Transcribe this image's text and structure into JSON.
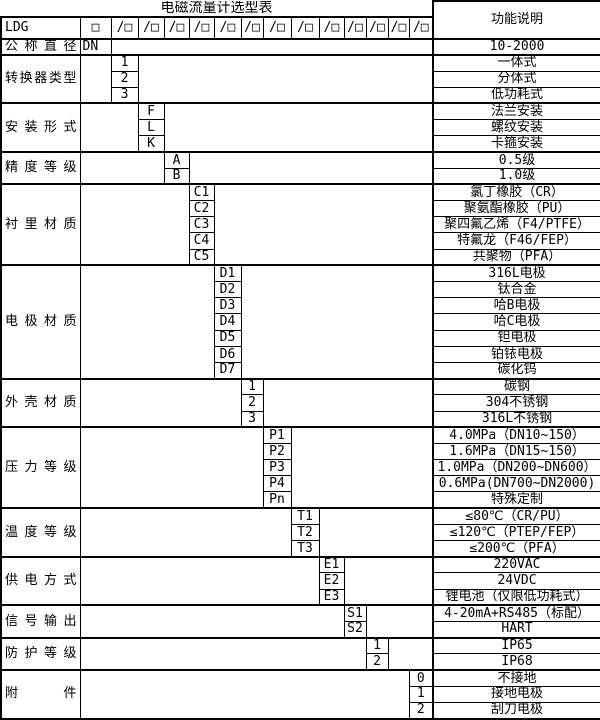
{
  "title": "电磁流量计选型表",
  "header": {
    "model": "LDG",
    "model_box": "□",
    "code_box": "/□",
    "desc": "功能说明"
  },
  "diameter": {
    "label": "公称直径",
    "code": "DN",
    "desc": "10-2000"
  },
  "sections": [
    {
      "label": "转换器类型",
      "col": 0,
      "items": [
        {
          "code": "1",
          "desc": "一体式"
        },
        {
          "code": "2",
          "desc": "分体式"
        },
        {
          "code": "3",
          "desc": "低功耗式"
        }
      ]
    },
    {
      "label": "安装形式",
      "col": 1,
      "items": [
        {
          "code": "F",
          "desc": "法兰安装"
        },
        {
          "code": "L",
          "desc": "螺纹安装"
        },
        {
          "code": "K",
          "desc": "卡箍安装"
        }
      ]
    },
    {
      "label": "精度等级",
      "col": 2,
      "items": [
        {
          "code": "A",
          "desc": "0.5级"
        },
        {
          "code": "B",
          "desc": "1.0级"
        }
      ]
    },
    {
      "label": "衬里材质",
      "col": 3,
      "items": [
        {
          "code": "C1",
          "desc": "氯丁橡胶（CR）"
        },
        {
          "code": "C2",
          "desc": "聚氨酯橡胶（PU）"
        },
        {
          "code": "C3",
          "desc": "聚四氟乙烯（F4/PTFE）"
        },
        {
          "code": "C4",
          "desc": "特氟龙（F46/FEP）"
        },
        {
          "code": "C5",
          "desc": "共聚物（PFA）"
        }
      ]
    },
    {
      "label": "电极材质",
      "col": 4,
      "items": [
        {
          "code": "D1",
          "desc": "316L电极"
        },
        {
          "code": "D2",
          "desc": "钛合金"
        },
        {
          "code": "D3",
          "desc": "哈B电极"
        },
        {
          "code": "D4",
          "desc": "哈C电极"
        },
        {
          "code": "D5",
          "desc": "钽电极"
        },
        {
          "code": "D6",
          "desc": "铂铱电极"
        },
        {
          "code": "D7",
          "desc": "碳化钨"
        }
      ]
    },
    {
      "label": "外壳材质",
      "col": 5,
      "items": [
        {
          "code": "1",
          "desc": "碳钢"
        },
        {
          "code": "2",
          "desc": "304不锈钢"
        },
        {
          "code": "3",
          "desc": "316L不锈钢"
        }
      ]
    },
    {
      "label": "压力等级",
      "col": 6,
      "items": [
        {
          "code": "P1",
          "desc": "4.0MPa（DN10~150）"
        },
        {
          "code": "P2",
          "desc": "1.6MPa（DN15~150）"
        },
        {
          "code": "P3",
          "desc": "1.0MPa（DN200~DN600）"
        },
        {
          "code": "P4",
          "desc": "0.6MPa(DN700~DN2000)"
        },
        {
          "code": "Pn",
          "desc": "特殊定制"
        }
      ]
    },
    {
      "label": "温度等级",
      "col": 7,
      "items": [
        {
          "code": "T1",
          "desc": "≤80℃（CR/PU）"
        },
        {
          "code": "T2",
          "desc": "≤120℃（PTEP/FEP）"
        },
        {
          "code": "T3",
          "desc": "≤200℃（PFA）"
        }
      ]
    },
    {
      "label": "供电方式",
      "col": 8,
      "items": [
        {
          "code": "E1",
          "desc": "220VAC"
        },
        {
          "code": "E2",
          "desc": "24VDC"
        },
        {
          "code": "E3",
          "desc": "锂电池（仅限低功耗式）"
        }
      ]
    },
    {
      "label": "信号输出",
      "col": 9,
      "items": [
        {
          "code": "S1",
          "desc": "4-20mA+RS485（标配）"
        },
        {
          "code": "S2",
          "desc": "HART"
        }
      ]
    },
    {
      "label": "防护等级",
      "col": 10,
      "items": [
        {
          "code": "1",
          "desc": "IP65"
        },
        {
          "code": "2",
          "desc": "IP68"
        }
      ]
    },
    {
      "label": "附件",
      "col": 12,
      "items": [
        {
          "code": "0",
          "desc": "不接地"
        },
        {
          "code": "1",
          "desc": "接地电极"
        },
        {
          "code": "2",
          "desc": "刮刀电极"
        }
      ]
    }
  ],
  "colors": {
    "text": "#000000",
    "border": "#000000",
    "background": "#ffffff"
  }
}
